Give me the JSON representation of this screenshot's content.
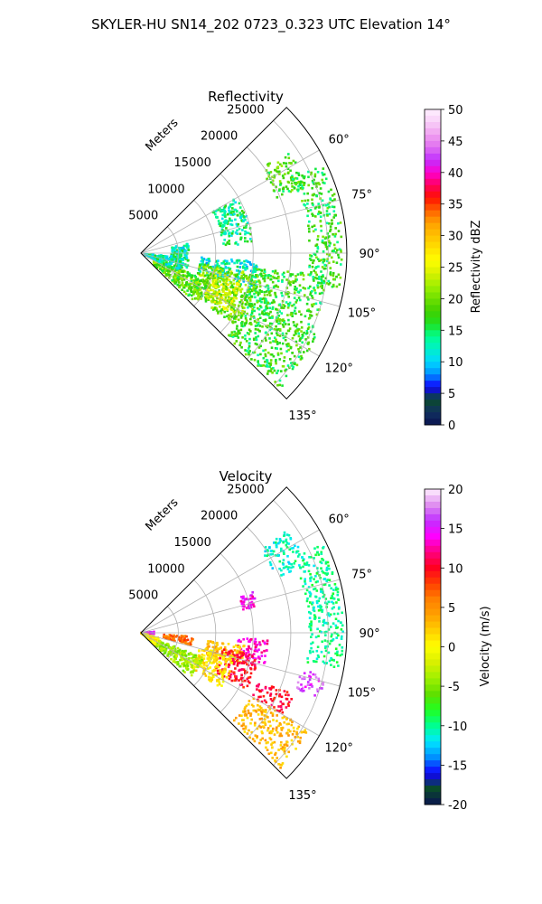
{
  "figure": {
    "title": "SKYLER-HU  SN14_202  0723_0.323 UTC Elevation 14°"
  },
  "chart_data": [
    {
      "type": "heatmap",
      "projection": "polar-sector",
      "title": "Reflectivity",
      "radial_axis": {
        "label": "Meters",
        "ticks": [
          5000,
          10000,
          15000,
          20000,
          25000
        ],
        "tick_labels": [
          "5000",
          "10000",
          "15000",
          "20000",
          "25000"
        ],
        "range": [
          0,
          27500
        ]
      },
      "azimuth_axis": {
        "range_deg": [
          45,
          135
        ],
        "ticks_deg": [
          60,
          75,
          90,
          105,
          120,
          135
        ],
        "tick_labels": [
          "60°",
          "75°",
          "90°",
          "105°",
          "120°",
          "135°"
        ],
        "unit": "deg"
      },
      "grid": true,
      "colorbar": {
        "label": "Reflectivity dBZ",
        "range": [
          0,
          50
        ],
        "ticks": [
          0,
          5,
          10,
          15,
          20,
          25,
          30,
          35,
          40,
          45,
          50
        ],
        "tick_labels": [
          "0",
          "5",
          "10",
          "15",
          "20",
          "25",
          "30",
          "35",
          "40",
          "45",
          "50"
        ]
      },
      "echo_regions": [
        {
          "az": [
            55,
            68
          ],
          "range": [
            19500,
            24000
          ],
          "value": 18
        },
        {
          "az": [
            64,
            100
          ],
          "range": [
            22500,
            27000
          ],
          "value": 17
        },
        {
          "az": [
            94,
            108
          ],
          "range": [
            8000,
            16000
          ],
          "value": 12
        },
        {
          "az": [
            100,
            128
          ],
          "range": [
            8000,
            16000
          ],
          "value": 20
        },
        {
          "az": [
            105,
            124
          ],
          "range": [
            10000,
            14000
          ],
          "value": 24
        },
        {
          "az": [
            97,
            117
          ],
          "range": [
            15000,
            25000
          ],
          "value": 17
        },
        {
          "az": [
            115,
            134
          ],
          "range": [
            16000,
            26000
          ],
          "value": 17
        },
        {
          "az": [
            112,
            132
          ],
          "range": [
            2000,
            10000
          ],
          "value": 19
        },
        {
          "az": [
            96,
            116
          ],
          "range": [
            500,
            5500
          ],
          "value": 13
        },
        {
          "az": [
            78,
            110
          ],
          "range": [
            4000,
            6500
          ],
          "value": 13
        },
        {
          "az": [
            60,
            85
          ],
          "range": [
            11000,
            15000
          ],
          "value": 14
        }
      ]
    },
    {
      "type": "heatmap",
      "projection": "polar-sector",
      "title": "Velocity",
      "radial_axis": {
        "label": "Meters",
        "ticks": [
          5000,
          10000,
          15000,
          20000,
          25000
        ],
        "tick_labels": [
          "5000",
          "10000",
          "15000",
          "20000",
          "25000"
        ],
        "range": [
          0,
          27500
        ]
      },
      "azimuth_axis": {
        "range_deg": [
          45,
          135
        ],
        "ticks_deg": [
          60,
          75,
          90,
          105,
          120,
          135
        ],
        "tick_labels": [
          "60°",
          "75°",
          "90°",
          "105°",
          "120°",
          "135°"
        ],
        "unit": "deg"
      },
      "grid": true,
      "colorbar": {
        "label": "Velocity (m/s)",
        "range": [
          -20,
          20
        ],
        "ticks": [
          -20,
          -15,
          -10,
          -5,
          0,
          5,
          10,
          15,
          20
        ],
        "tick_labels": [
          "-20",
          "-15",
          "-10",
          "-5",
          "0",
          "5",
          "10",
          "15",
          "20"
        ]
      },
      "echo_regions": [
        {
          "az": [
            55,
            68
          ],
          "range": [
            19500,
            24000
          ],
          "value": -11
        },
        {
          "az": [
            64,
            100
          ],
          "range": [
            22500,
            27000
          ],
          "value": -10
        },
        {
          "az": [
            93,
            104
          ],
          "range": [
            13000,
            17000
          ],
          "value": 13
        },
        {
          "az": [
            97,
            108
          ],
          "range": [
            9000,
            14000
          ],
          "value": 3
        },
        {
          "az": [
            101,
            118
          ],
          "range": [
            11000,
            16000
          ],
          "value": 10
        },
        {
          "az": [
            104,
            125
          ],
          "range": [
            8000,
            13000
          ],
          "value": 1
        },
        {
          "az": [
            112,
            132
          ],
          "range": [
            1000,
            9000
          ],
          "value": -4
        },
        {
          "az": [
            103,
            110
          ],
          "range": [
            22000,
            25500
          ],
          "value": 16
        },
        {
          "az": [
            112,
            120
          ],
          "range": [
            17000,
            22000
          ],
          "value": 10
        },
        {
          "az": [
            120,
            134
          ],
          "range": [
            17000,
            26000
          ],
          "value": 3
        },
        {
          "az": [
            94,
            104
          ],
          "range": [
            3000,
            7000
          ],
          "value": 7
        },
        {
          "az": [
            70,
            78
          ],
          "range": [
            14000,
            16000
          ],
          "value": 14
        },
        {
          "az": [
            85,
            95
          ],
          "range": [
            0,
            1800
          ],
          "value": 15
        },
        {
          "az": [
            105,
            130
          ],
          "range": [
            0,
            2500
          ],
          "value": 1
        }
      ]
    }
  ]
}
